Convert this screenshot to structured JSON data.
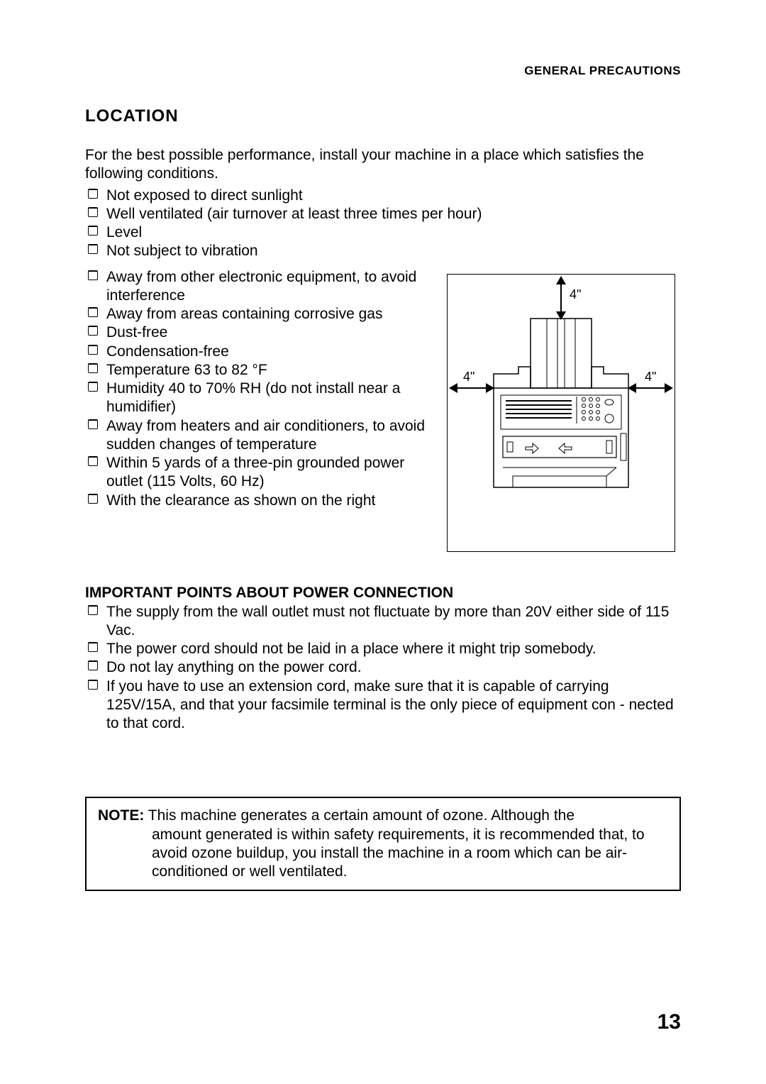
{
  "header": "GENERAL PRECAUTIONS",
  "title": "LOCATION",
  "intro": "For the best possible performance, install your machine in a place which satisfies the following conditions.",
  "bullets_top": [
    "Not exposed to direct sunlight",
    "Well ventilated (air turnover at least three times per hour)",
    "Level",
    "Not subject to vibration"
  ],
  "bullets_wrap": [
    "Away from other electronic equipment, to avoid interference",
    "Away from areas containing corrosive gas",
    "Dust-free",
    "Condensation-free",
    "Temperature 63 to 82 °F",
    "Humidity 40 to 70% RH (do not install near a humidifier)",
    "Away from heaters and air conditioners, to avoid sudden changes of temperature",
    "Within 5 yards of a three-pin grounded power outlet (115 Volts, 60 Hz)",
    "With the clearance as shown on the right"
  ],
  "subheading": "IMPORTANT POINTS ABOUT POWER CONNECTION",
  "bullets_power": [
    "The supply from the wall outlet must not fluctuate by more than 20V either side of 115 Vac.",
    "The power cord should not be laid in a place where it might trip somebody.",
    "Do not lay anything on the power cord.",
    "If you have to use an extension cord, make sure that it is capable of carrying 125V/15A, and that your facsimile terminal is the only piece of equipment con - nected to that cord."
  ],
  "note_label": "NOTE:",
  "note_text_first": "This machine generates a certain amount of ozone. Although the",
  "note_text_rest": "amount generated is within safety requirements, it is recommended that, to avoid ozone buildup, you install the machine in a room which can be air-conditioned or well ventilated.",
  "page_number": "13",
  "diagram": {
    "top_label": "4\"",
    "left_label": "4\"",
    "right_label": "4\"",
    "border_color": "#000000",
    "background": "#ffffff"
  }
}
